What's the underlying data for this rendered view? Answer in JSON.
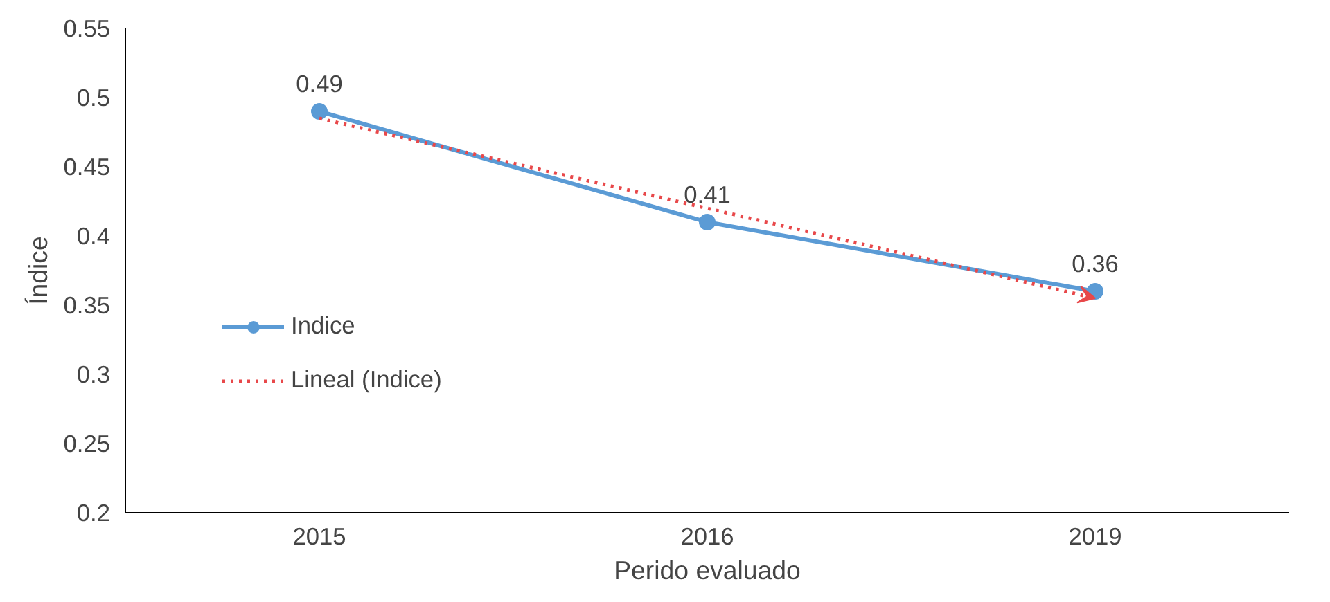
{
  "chart_data": {
    "type": "line",
    "xlabel": "Perido evaluado",
    "ylabel": "Índice",
    "categories": [
      "2015",
      "2016",
      "2019"
    ],
    "series": [
      {
        "name": "Indice",
        "color": "#5b9bd5",
        "values": [
          0.49,
          0.41,
          0.36
        ],
        "marker": "circle",
        "line_style": "solid",
        "value_labels": [
          "0.49",
          "0.41",
          "0.36"
        ]
      },
      {
        "name": "Lineal (Indice)",
        "color": "#e8484a",
        "values": [
          0.485,
          0.42,
          0.355
        ],
        "marker": "none",
        "line_style": "dotted"
      }
    ],
    "ylim": [
      0.2,
      0.55
    ],
    "yticks": [
      0.2,
      0.25,
      0.3,
      0.35,
      0.4,
      0.45,
      0.5,
      0.55
    ],
    "grid": false,
    "legend": "left"
  }
}
